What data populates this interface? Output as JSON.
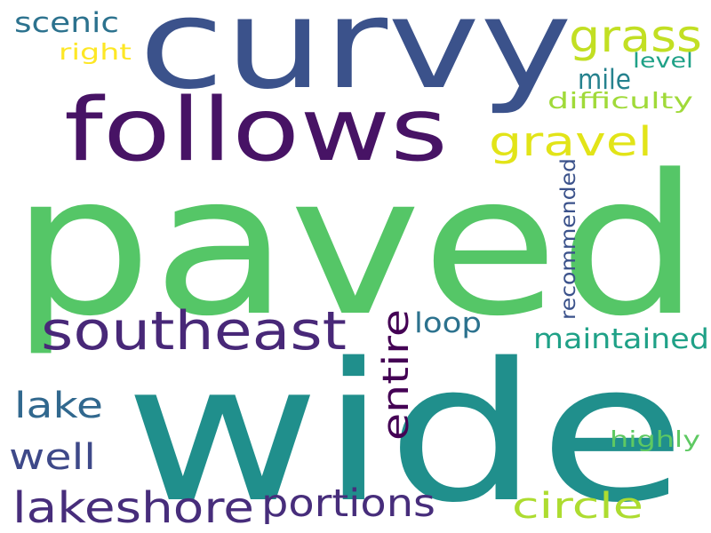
{
  "words": [
    {
      "text": "paved",
      "color": "#55c667",
      "orientation": "horizontal"
    },
    {
      "text": "wide",
      "color": "#208f8c",
      "orientation": "horizontal"
    },
    {
      "text": "curvy",
      "color": "#3b528b",
      "orientation": "horizontal"
    },
    {
      "text": "follows",
      "color": "#471365",
      "orientation": "horizontal"
    },
    {
      "text": "southeast",
      "color": "#482878",
      "orientation": "horizontal"
    },
    {
      "text": "grass",
      "color": "#c2df23",
      "orientation": "horizontal"
    },
    {
      "text": "gravel",
      "color": "#e2e418",
      "orientation": "horizontal"
    },
    {
      "text": "lakeshore",
      "color": "#472d7b",
      "orientation": "horizontal"
    },
    {
      "text": "portions",
      "color": "#472d7b",
      "orientation": "horizontal"
    },
    {
      "text": "entire",
      "color": "#440154",
      "orientation": "vertical"
    },
    {
      "text": "circle",
      "color": "#addc30",
      "orientation": "horizontal"
    },
    {
      "text": "lake",
      "color": "#31688e",
      "orientation": "horizontal"
    },
    {
      "text": "well",
      "color": "#3e4989",
      "orientation": "horizontal"
    },
    {
      "text": "maintained",
      "color": "#1fa187",
      "orientation": "horizontal"
    },
    {
      "text": "loop",
      "color": "#2c728e",
      "orientation": "horizontal"
    },
    {
      "text": "mile",
      "color": "#26828e",
      "orientation": "horizontal"
    },
    {
      "text": "scenic",
      "color": "#2c728e",
      "orientation": "horizontal"
    },
    {
      "text": "right",
      "color": "#fde725",
      "orientation": "horizontal"
    },
    {
      "text": "level",
      "color": "#1fa187",
      "orientation": "horizontal"
    },
    {
      "text": "difficulty",
      "color": "#a0da39",
      "orientation": "horizontal"
    },
    {
      "text": "recommended",
      "color": "#3b528b",
      "orientation": "vertical"
    },
    {
      "text": "highly",
      "color": "#5ec962",
      "orientation": "horizontal"
    }
  ]
}
